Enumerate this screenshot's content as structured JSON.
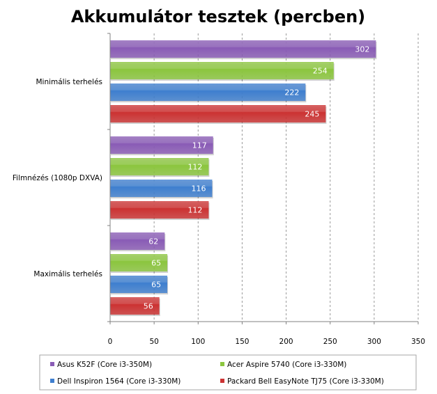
{
  "chart_data": {
    "type": "bar",
    "orientation": "horizontal",
    "title": "Akkumulátor tesztek (percben)",
    "categories": [
      "Minimális terhelés",
      "Filmnézés (1080p DXVA)",
      "Maximális terhelés"
    ],
    "series": [
      {
        "name": "Asus K52F (Core i3-350M)",
        "color": "#8a5cb6",
        "values": [
          302,
          117,
          62
        ]
      },
      {
        "name": "Acer Aspire 5740 (Core i3-330M)",
        "color": "#8cc63f",
        "values": [
          254,
          112,
          65
        ]
      },
      {
        "name": "Dell Inspiron 1564 (Core i3-330M)",
        "color": "#3f7fcf",
        "values": [
          222,
          116,
          65
        ]
      },
      {
        "name": "Packard Bell EasyNote  TJ75 (Core i3-330M)",
        "color": "#cc3333",
        "values": [
          245,
          112,
          56
        ]
      }
    ],
    "xlim": [
      0,
      350
    ],
    "xticks": [
      0,
      50,
      100,
      150,
      200,
      250,
      300,
      350
    ],
    "grid": true,
    "legend_position": "bottom"
  }
}
